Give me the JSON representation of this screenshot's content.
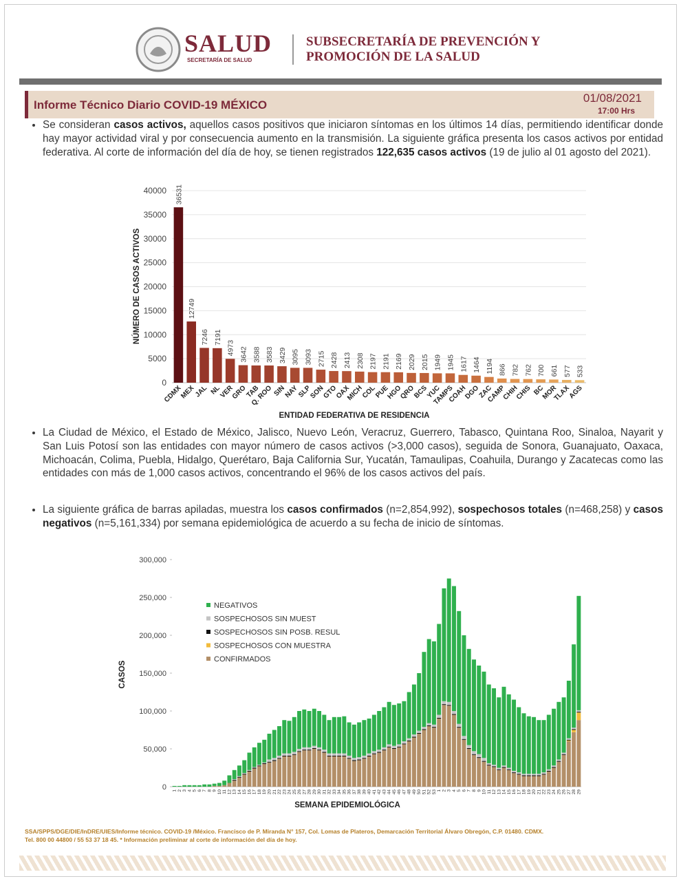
{
  "header": {
    "brand": "SALUD",
    "brand_sub": "SECRETARÍA DE SALUD",
    "office_line1": "SUBSECRETARÍA DE PREVENCIÓN Y",
    "office_line2": "PROMOCIÓN DE LA SALUD"
  },
  "title_bar": {
    "title": "Informe Técnico Diario COVID-19 MÉXICO",
    "date": "01/08/2021",
    "time": "17:00 Hrs"
  },
  "paragraphs": [
    [
      "Se consideran ",
      "casos activos,",
      " aquellos casos positivos que iniciaron síntomas en los últimos 14 días, permitiendo identificar donde hay mayor actividad viral y por consecuencia aumento en la transmisión. La siguiente gráfica presenta los casos activos por entidad federativa. Al corte de información del día de hoy, se tienen registrados ",
      "122,635 casos activos",
      " (19 de julio al 01 agosto del 2021)."
    ],
    [
      "La Ciudad de México, el Estado de México, Jalisco, Nuevo León, Veracruz, Guerrero, Tabasco, Quintana Roo, Sinaloa, Nayarit y San Luis Potosí son las entidades con mayor número de casos activos (>3,000 casos), seguida de Sonora, Guanajuato, Oaxaca, Michoacán, Colima, Puebla, Hidalgo, Querétaro, Baja California Sur, Yucatán, Tamaulipas, Coahuila, Durango y Zacatecas como las entidades con más de 1,000 casos activos, concentrando el 96% de los casos activos del país."
    ],
    [
      "La siguiente gráfica de barras apiladas, muestra los ",
      "casos confirmados",
      " (n=2,854,992), ",
      "sospechosos totales",
      " (n=468,258) y ",
      "casos negativos",
      " (n=5,161,334) por semana epidemiológica de acuerdo a su fecha de inicio de síntomas."
    ]
  ],
  "footer": {
    "line1": "SSA/SPPS/DGE/DIE/InDRE/UIES/Informe técnico. COVID-19 /México. Francisco de P. Miranda N° 157, Col. Lomas de Plateros, Demarcación Territorial Álvaro Obregón, C.P. 01480. CDMX.",
    "line2": "Tel. 800 00 44800 / 55 53 37 18 45. * Información preliminar al corte de información del día de hoy."
  },
  "chart_data": [
    {
      "type": "bar",
      "x_label": "ENTIDAD FEDERATIVA DE RESIDENCIA",
      "y_label": "NÚMERO DE CASOS ACTIVOS",
      "categories": [
        "CDMX",
        "MEX",
        "JAL",
        "NL",
        "VER",
        "GRO",
        "TAB",
        "Q. ROO",
        "SIN",
        "NAY",
        "SLP",
        "SON",
        "GTO",
        "OAX",
        "MICH",
        "COL",
        "PUE",
        "HGO",
        "QRO",
        "BCS",
        "YUC",
        "TAMPS",
        "COAH",
        "DGO",
        "ZAC",
        "CAMP",
        "CHIH",
        "CHIS",
        "BC",
        "MOR",
        "TLAX",
        "AGS"
      ],
      "values": [
        36531,
        12749,
        7246,
        7191,
        4973,
        3642,
        3588,
        3583,
        3429,
        3095,
        3093,
        2715,
        2428,
        2413,
        2308,
        2197,
        2191,
        2169,
        2029,
        2015,
        1949,
        1945,
        1617,
        1464,
        1194,
        866,
        782,
        762,
        700,
        661,
        577,
        533
      ],
      "colors": [
        "#5c1014",
        "#8a2b22",
        "#963629",
        "#963629",
        "#9c3b2b",
        "#a0412e",
        "#a0412e",
        "#a0412e",
        "#a44530",
        "#a84a32",
        "#a84a32",
        "#b04f34",
        "#b45436",
        "#b45436",
        "#b85937",
        "#bb5d38",
        "#bb5d38",
        "#bb5d38",
        "#be6139",
        "#be6139",
        "#c2663b",
        "#c2663b",
        "#c66c3d",
        "#c9703e",
        "#d57f45",
        "#e0904e",
        "#e29651",
        "#e29651",
        "#e49d55",
        "#e6a45b",
        "#e8b062",
        "#eabb6c"
      ],
      "ylim": [
        0,
        40000
      ],
      "yticks": [
        0,
        5000,
        10000,
        15000,
        20000,
        25000,
        30000,
        35000,
        40000
      ],
      "grid": true
    },
    {
      "type": "stacked_bar",
      "x_label": "SEMANA EPIDEMIOLÓGICA",
      "y_label": "CASOS",
      "categories": [
        "1",
        "2",
        "3",
        "4",
        "5",
        "6",
        "7",
        "8",
        "9",
        "10",
        "11",
        "12",
        "13",
        "14",
        "15",
        "16",
        "17",
        "18",
        "19",
        "20",
        "21",
        "22",
        "23",
        "24",
        "25",
        "26",
        "27",
        "28",
        "29",
        "30",
        "31",
        "32",
        "33",
        "34",
        "35",
        "36",
        "37",
        "38",
        "39",
        "40",
        "41",
        "42",
        "43",
        "44",
        "45",
        "46",
        "47",
        "48",
        "49",
        "50",
        "51",
        "52",
        "53",
        "1",
        "2",
        "3",
        "4",
        "5",
        "6",
        "7",
        "8",
        "9",
        "10",
        "11",
        "12",
        "13",
        "14",
        "15",
        "16",
        "17",
        "18",
        "19",
        "20",
        "21",
        "22",
        "23",
        "24",
        "25",
        "26",
        "27",
        "28",
        "29"
      ],
      "series": [
        {
          "name": "CONFIRMADOS",
          "color": "#b38f68",
          "values": [
            0,
            0,
            0,
            0,
            0,
            0,
            0,
            0,
            1000,
            1000,
            2000,
            5000,
            8000,
            12000,
            16000,
            20000,
            24000,
            27000,
            30000,
            32000,
            34000,
            37000,
            40000,
            40000,
            42000,
            46000,
            48000,
            48000,
            50000,
            48000,
            45000,
            40000,
            40000,
            40000,
            40000,
            37000,
            34000,
            35000,
            37000,
            40000,
            43000,
            45000,
            48000,
            52000,
            50000,
            52000,
            56000,
            60000,
            65000,
            70000,
            75000,
            80000,
            78000,
            90000,
            108000,
            107000,
            95000,
            78000,
            62000,
            50000,
            42000,
            38000,
            33000,
            28000,
            26000,
            22000,
            25000,
            22000,
            18000,
            16000,
            14000,
            14000,
            14000,
            14000,
            16000,
            20000,
            25000,
            33000,
            42000,
            60000,
            72000,
            88000
          ]
        },
        {
          "name": "SOSPECHOSOS CON MUESTRA",
          "color": "#f2bb3c",
          "values": [
            0,
            0,
            0,
            0,
            0,
            0,
            0,
            0,
            0,
            0,
            0,
            0,
            0,
            0,
            0,
            0,
            0,
            0,
            0,
            0,
            0,
            0,
            0,
            0,
            0,
            0,
            0,
            0,
            0,
            0,
            0,
            0,
            0,
            0,
            0,
            0,
            0,
            0,
            0,
            0,
            0,
            0,
            0,
            0,
            0,
            0,
            0,
            0,
            0,
            0,
            0,
            0,
            0,
            0,
            0,
            0,
            0,
            0,
            0,
            0,
            0,
            0,
            0,
            0,
            0,
            0,
            0,
            0,
            0,
            0,
            0,
            0,
            0,
            0,
            0,
            0,
            0,
            0,
            0,
            1000,
            3000,
            10000
          ]
        },
        {
          "name": "SOSPECHOSOS SIN POSB. RESUL",
          "color": "#111111",
          "values": [
            0,
            0,
            0,
            0,
            0,
            0,
            0,
            0,
            0,
            0,
            0,
            0,
            1000,
            1000,
            1000,
            1000,
            1000,
            1000,
            1000,
            1000,
            1000,
            1000,
            1000,
            1000,
            1000,
            1000,
            1000,
            1000,
            1000,
            1000,
            1000,
            1000,
            1000,
            1000,
            1000,
            1000,
            1000,
            1000,
            1000,
            1000,
            1000,
            1000,
            1000,
            1000,
            1000,
            1000,
            1000,
            1000,
            1000,
            1000,
            1000,
            1000,
            1000,
            1000,
            1000,
            1000,
            1000,
            1000,
            1000,
            1000,
            1000,
            1000,
            1000,
            1000,
            1000,
            1000,
            1000,
            1000,
            1000,
            1000,
            1000,
            1000,
            1000,
            1000,
            1000,
            1000,
            1000,
            1000,
            1000,
            1000,
            1000,
            1000
          ]
        },
        {
          "name": "SOSPECHOSOS SIN MUEST",
          "color": "#c4c4c4",
          "values": [
            0,
            0,
            0,
            0,
            0,
            0,
            0,
            0,
            0,
            0,
            0,
            0,
            1000,
            1000,
            1000,
            1000,
            1000,
            1000,
            1000,
            3000,
            3000,
            3000,
            3000,
            3000,
            3000,
            3000,
            3000,
            3000,
            3000,
            3000,
            3000,
            3000,
            3000,
            3000,
            3000,
            3000,
            3000,
            3000,
            3000,
            3000,
            3000,
            3000,
            3000,
            3000,
            3000,
            3000,
            3000,
            3000,
            3000,
            3000,
            3000,
            3000,
            3000,
            4000,
            4000,
            4000,
            4000,
            4000,
            4000,
            4000,
            4000,
            4000,
            4000,
            2000,
            2000,
            2000,
            2000,
            2000,
            2000,
            2000,
            2000,
            2000,
            2000,
            2000,
            2000,
            2000,
            2000,
            2000,
            2000,
            2000,
            2000,
            2000
          ]
        },
        {
          "name": "NEGATIVOS",
          "color": "#2fb04e",
          "values": [
            1000,
            1000,
            2000,
            2000,
            2000,
            2000,
            3000,
            3000,
            3000,
            4000,
            6000,
            10000,
            12000,
            14000,
            17000,
            23000,
            26000,
            29000,
            30000,
            34000,
            37000,
            39000,
            44000,
            43000,
            46000,
            50000,
            50000,
            48000,
            49000,
            48000,
            46000,
            44000,
            48000,
            48000,
            49000,
            44000,
            44000,
            46000,
            47000,
            46000,
            48000,
            51000,
            53000,
            56000,
            54000,
            54000,
            53000,
            61000,
            66000,
            76000,
            99000,
            111000,
            110000,
            120000,
            149000,
            163000,
            165000,
            149000,
            133000,
            127000,
            121000,
            117000,
            114000,
            104000,
            101000,
            93000,
            104000,
            97000,
            94000,
            86000,
            80000,
            76000,
            75000,
            71000,
            69000,
            72000,
            75000,
            76000,
            73000,
            76000,
            110000,
            151000
          ]
        }
      ],
      "ylim": [
        0,
        300000
      ],
      "yticks": [
        0,
        {
          "value": 50000,
          "label": "50,000"
        },
        {
          "value": 100000,
          "label": "100,000"
        },
        {
          "value": 150000,
          "label": "150,000"
        },
        {
          "value": 200000,
          "label": "200,000"
        },
        {
          "value": 250000,
          "label": "250,000"
        },
        {
          "value": 300000,
          "label": "300,000"
        }
      ],
      "grid": false,
      "legend": "upper left"
    }
  ]
}
